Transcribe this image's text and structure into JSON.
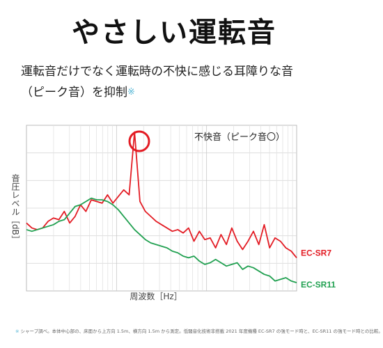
{
  "headline": "やさしい運転音",
  "lead": {
    "line1": "運転音だけでなく運転時の不快に感じる耳障りな音",
    "line2": "（ピーク音）を抑制",
    "mark": "※"
  },
  "footnote": {
    "mark": "※",
    "text": "シャープ調べ。本体中心部の、床面から上方向 1.5m、横方向 1.5m から測定。低騒音化技術非搭載 2021 年度機種 EC-SR7 の強モード時と、EC-SR11 の強モード時との比較。"
  },
  "colors": {
    "accent": "#59b8d6"
  },
  "chart_data": {
    "type": "line",
    "ylabel": "音圧レベル［dB］",
    "xlabel": "周波数［Hz］",
    "annotation": "不快音（ピーク音〇）",
    "grid": true,
    "ylim": [
      0,
      100
    ],
    "x": [
      0,
      2,
      4,
      6,
      8,
      10,
      12,
      14,
      16,
      18,
      20,
      22,
      24,
      26,
      28,
      30,
      32,
      34,
      36,
      38,
      40,
      42,
      44,
      46,
      48,
      50,
      52,
      54,
      56,
      58,
      60,
      62,
      64,
      66,
      68,
      70,
      72,
      74,
      76,
      78,
      80,
      82,
      84,
      86,
      88,
      90,
      92,
      94,
      96,
      98,
      100
    ],
    "series": [
      {
        "name": "EC-SR7",
        "color": "#e31b23",
        "values": [
          41,
          38,
          37,
          38,
          42,
          44,
          43,
          48,
          41,
          45,
          52,
          48,
          55,
          54,
          53,
          58,
          53,
          57,
          61,
          58,
          96,
          54,
          48,
          45,
          42,
          40,
          38,
          36,
          37,
          35,
          38,
          30,
          36,
          31,
          32,
          26,
          34,
          28,
          38,
          30,
          25,
          30,
          36,
          28,
          40,
          26,
          32,
          30,
          26,
          24,
          20
        ]
      },
      {
        "name": "EC-SR11",
        "color": "#20a050",
        "values": [
          37,
          36,
          37,
          38,
          39,
          40,
          42,
          43,
          47,
          51,
          52,
          54,
          56,
          55,
          55,
          54,
          52,
          49,
          45,
          41,
          37,
          34,
          31,
          29,
          28,
          27,
          26,
          24,
          23,
          21,
          20,
          21,
          18,
          16,
          17,
          19,
          17,
          15,
          16,
          17,
          13,
          15,
          14,
          12,
          10,
          9,
          6,
          7,
          8,
          6,
          5
        ]
      }
    ]
  }
}
